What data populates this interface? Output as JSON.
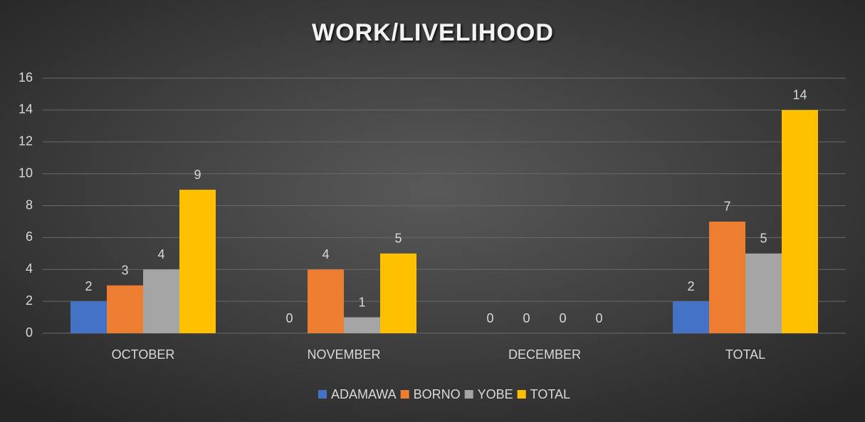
{
  "chart_data": {
    "type": "bar",
    "title": "WORK/LIVELIHOOD",
    "categories": [
      "OCTOBER",
      "NOVEMBER",
      "DECEMBER",
      "TOTAL"
    ],
    "series": [
      {
        "name": "ADAMAWA",
        "color": "#4472c4",
        "values": [
          2,
          0,
          0,
          2
        ]
      },
      {
        "name": "BORNO",
        "color": "#ed7d31",
        "values": [
          3,
          4,
          0,
          7
        ]
      },
      {
        "name": "YOBE",
        "color": "#a5a5a5",
        "values": [
          4,
          1,
          0,
          5
        ]
      },
      {
        "name": "TOTAL",
        "color": "#ffc000",
        "values": [
          9,
          5,
          0,
          14
        ]
      }
    ],
    "ylim": [
      0,
      16
    ],
    "yticks": [
      0,
      2,
      4,
      6,
      8,
      10,
      12,
      14,
      16
    ],
    "grid": true,
    "legend": "bottom"
  }
}
